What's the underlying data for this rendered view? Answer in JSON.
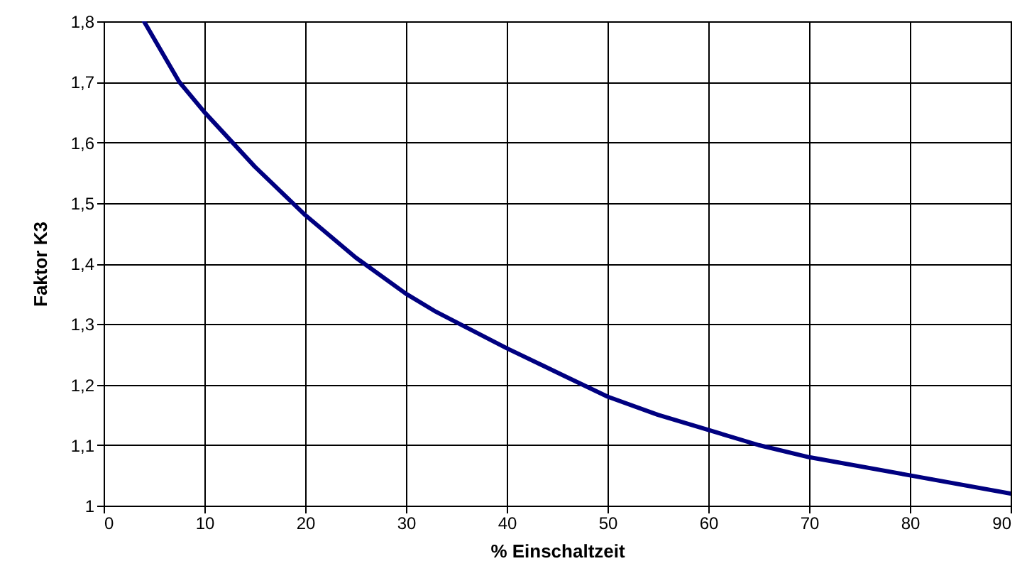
{
  "chart_data": {
    "type": "line",
    "xlabel": "% Einschaltzeit",
    "ylabel": "Faktor K3",
    "x": [
      4,
      7.5,
      10,
      15,
      20,
      25,
      30,
      33,
      40,
      45,
      50,
      55,
      60,
      65,
      70,
      80,
      90
    ],
    "series": [
      {
        "color": "#000080",
        "values": [
          1.8,
          1.7,
          1.65,
          1.56,
          1.48,
          1.41,
          1.35,
          1.32,
          1.26,
          1.22,
          1.18,
          1.15,
          1.125,
          1.1,
          1.08,
          1.05,
          1.02
        ]
      }
    ],
    "xlim": [
      0,
      90
    ],
    "xticks": [
      0,
      10,
      20,
      30,
      40,
      50,
      60,
      70,
      80,
      90
    ],
    "ylim": [
      1,
      1.8
    ],
    "yticks": [
      1,
      {
        "value": 1.1,
        "label": "1,1"
      },
      {
        "value": 1.2,
        "label": "1,2"
      },
      {
        "value": 1.3,
        "label": "1,3"
      },
      {
        "value": 1.4,
        "label": "1,4"
      },
      {
        "value": 1.5,
        "label": "1,5"
      },
      {
        "value": 1.6,
        "label": "1,6"
      },
      {
        "value": 1.7,
        "label": "1,7"
      },
      {
        "value": 1.8,
        "label": "1,8"
      }
    ],
    "grid": true,
    "marker": "none",
    "line_style": "solid"
  }
}
